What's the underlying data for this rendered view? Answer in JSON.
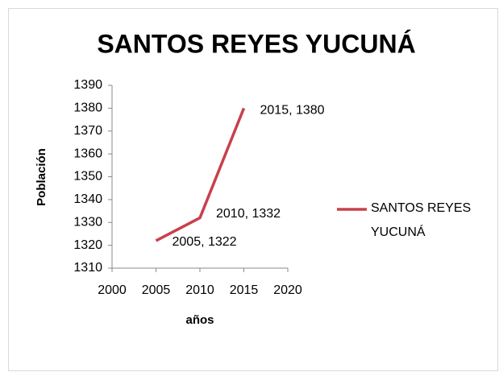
{
  "chart_data": {
    "type": "line",
    "title": "SANTOS REYES YUCUNÁ",
    "x_label": "años",
    "y_label": "Población",
    "x": [
      2005,
      2010,
      2015
    ],
    "series": [
      {
        "name": "SANTOS REYES YUCUNÁ",
        "color": "#c8404c",
        "values": [
          1322,
          1332,
          1380
        ],
        "value_labels": [
          "2005, 1322",
          "2010, 1332",
          "2015, 1380"
        ]
      }
    ],
    "xlim": [
      2000,
      2020
    ],
    "xticks": [
      2000,
      2005,
      2010,
      2015,
      2020
    ],
    "ylim": [
      1310,
      1390
    ],
    "yticks": [
      1310,
      1320,
      1330,
      1340,
      1350,
      1360,
      1370,
      1380,
      1390
    ],
    "grid": false,
    "legend": "right"
  }
}
